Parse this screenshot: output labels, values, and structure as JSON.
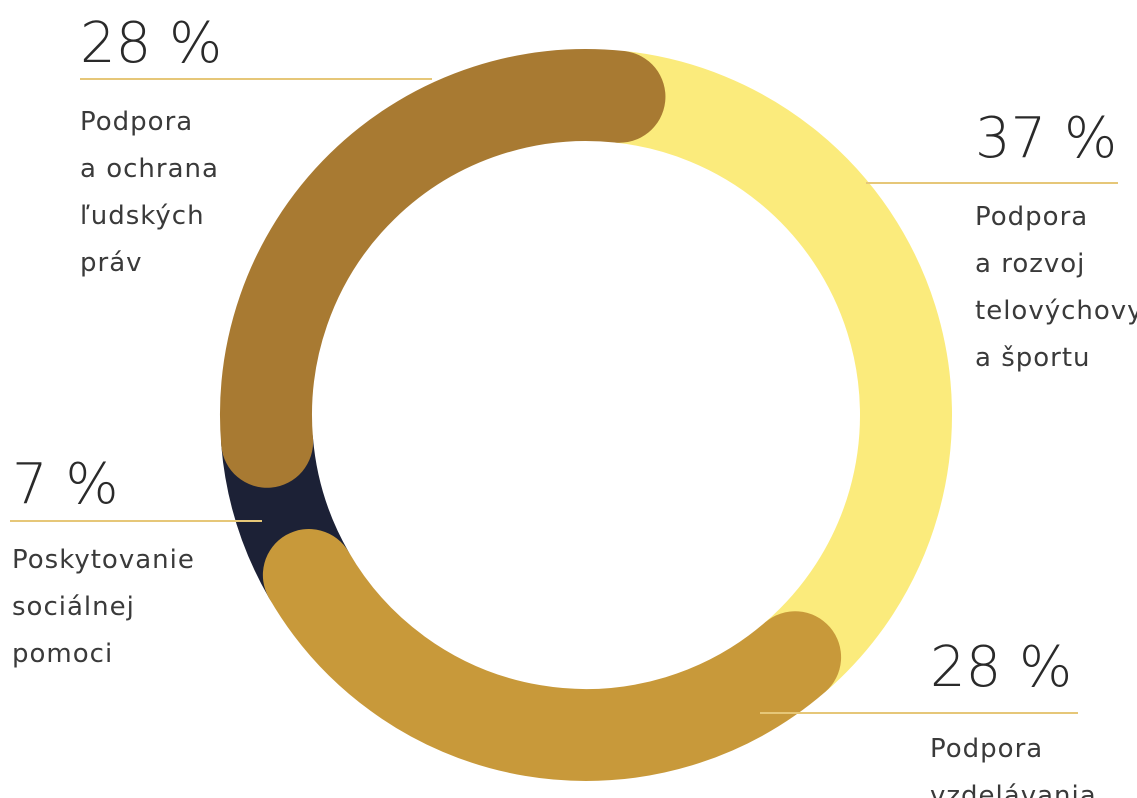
{
  "chart_data": {
    "type": "donut",
    "series": [
      {
        "name": "Podpora a rozvoj telovýchovy a športu",
        "value": 37,
        "value_label": "37 %",
        "label_lines": [
          "Podpora",
          "a rozvoj",
          "telovýchovy",
          "a športu"
        ],
        "color": "#fbeb7c"
      },
      {
        "name": "Podpora vzdelávania",
        "value": 28,
        "value_label": "28 %",
        "label_lines": [
          "Podpora",
          "vzdelávania"
        ],
        "color": "#c8993a"
      },
      {
        "name": "Poskytovanie sociálnej pomoci",
        "value": 7,
        "value_label": "7 %",
        "label_lines": [
          "Poskytovanie",
          "sociálnej",
          "pomoci"
        ],
        "color": "#1c2136"
      },
      {
        "name": "Podpora a ochrana ľudských práv",
        "value": 28,
        "value_label": "28 %",
        "label_lines": [
          "Podpora",
          "a ochrana",
          "ľudských",
          "práv"
        ],
        "color": "#a87a32"
      }
    ],
    "colors": {
      "leader_line": "#e6c778",
      "text": "#333333"
    }
  }
}
